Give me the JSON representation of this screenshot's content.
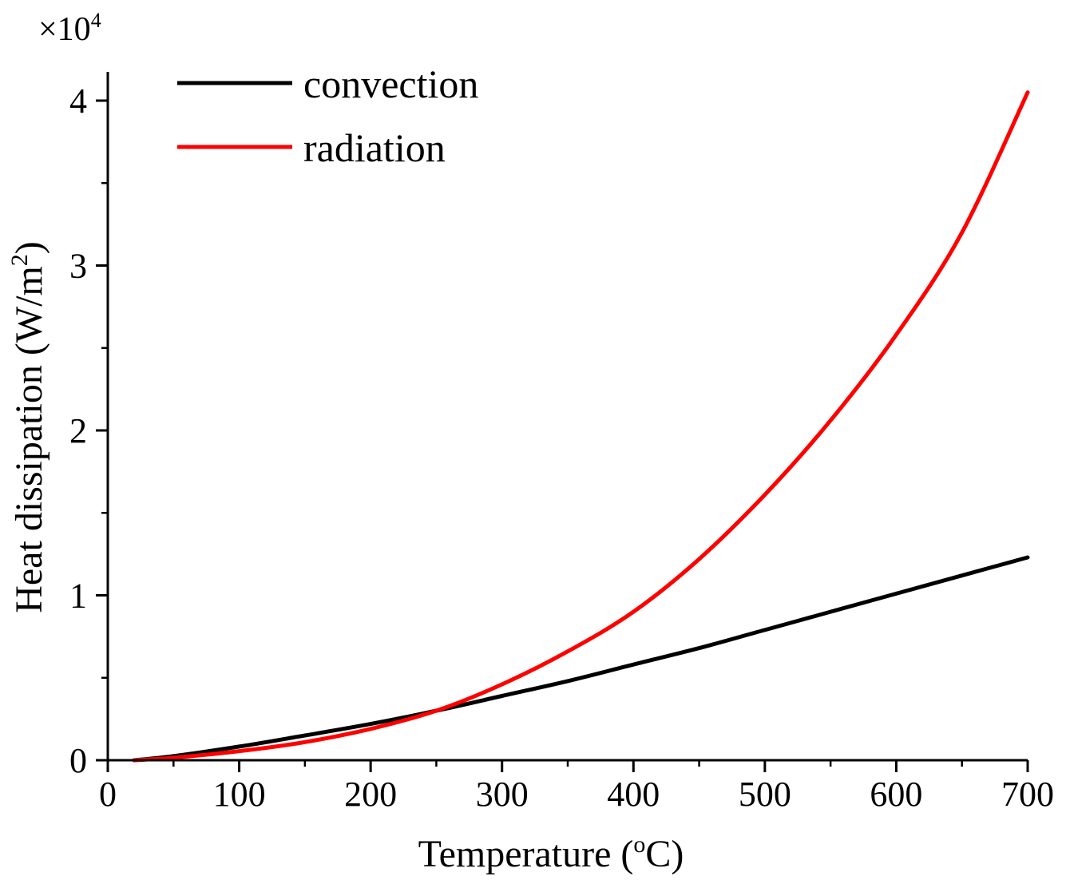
{
  "chart_data": {
    "type": "line",
    "title": "",
    "xlabel": "Temperature (",
    "xlabel_unit_sup": "o",
    "xlabel_unit_rest": "C)",
    "ylabel": "Heat dissipation (W/m",
    "ylabel_sup": "2",
    "ylabel_close": ")",
    "y_multiplier_base": "×10",
    "y_multiplier_exp": "4",
    "xlim": [
      0,
      700
    ],
    "ylim": [
      0,
      4.2
    ],
    "x_ticks": [
      "0",
      "100",
      "200",
      "300",
      "400",
      "500",
      "600",
      "700"
    ],
    "x_tick_values": [
      0,
      100,
      200,
      300,
      400,
      500,
      600,
      700
    ],
    "y_ticks": [
      "0",
      "1",
      "2",
      "3",
      "4"
    ],
    "y_tick_values": [
      0,
      1,
      2,
      3,
      4
    ],
    "x_minor_step": 50,
    "y_minor_step": 0.5,
    "legend_position": "top-left",
    "series": [
      {
        "name": "convection",
        "color": "#000000",
        "x": [
          20,
          50,
          100,
          150,
          200,
          250,
          300,
          350,
          400,
          450,
          500,
          550,
          600,
          650,
          700
        ],
        "values": [
          0,
          0.025,
          0.083,
          0.15,
          0.22,
          0.3,
          0.39,
          0.48,
          0.58,
          0.68,
          0.79,
          0.9,
          1.01,
          1.12,
          1.23
        ]
      },
      {
        "name": "radiation",
        "color": "#ff0000",
        "x": [
          20,
          50,
          100,
          150,
          200,
          250,
          300,
          350,
          400,
          450,
          500,
          550,
          600,
          650,
          700
        ],
        "values": [
          0,
          0.015,
          0.055,
          0.11,
          0.19,
          0.3,
          0.46,
          0.66,
          0.9,
          1.22,
          1.61,
          2.06,
          2.58,
          3.2,
          4.05
        ]
      }
    ]
  }
}
